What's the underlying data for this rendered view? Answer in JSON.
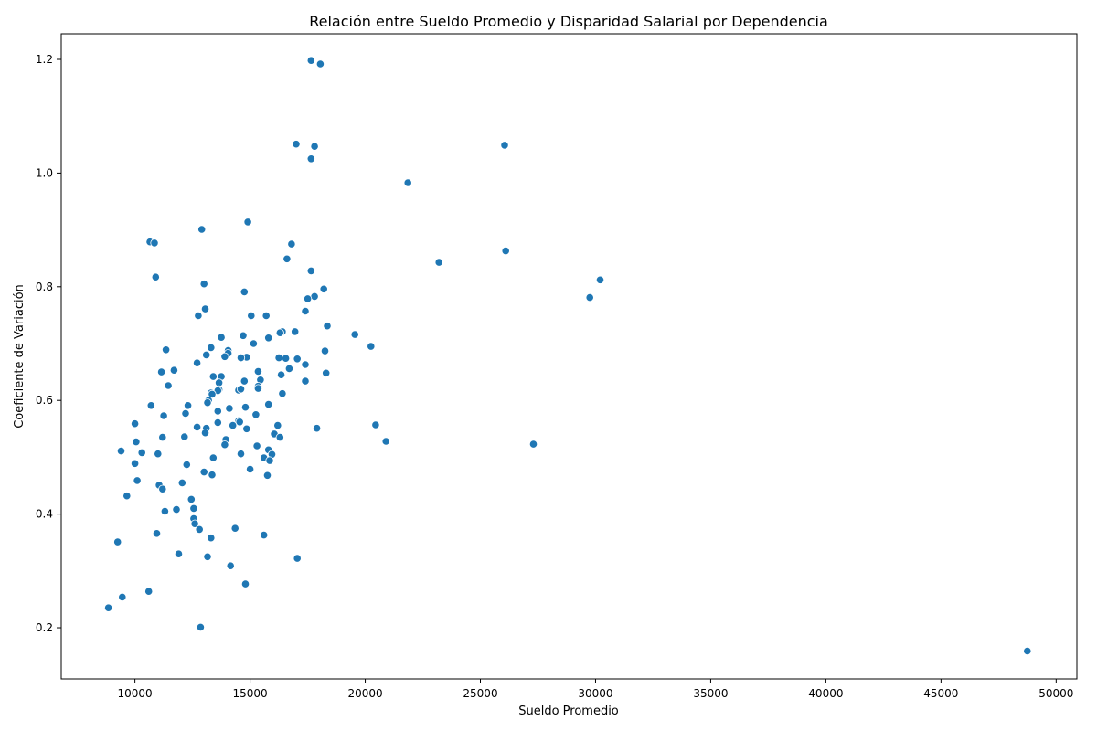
{
  "chart_data": {
    "type": "scatter",
    "title": "Relación entre Sueldo Promedio y Disparidad Salarial por Dependencia",
    "xlabel": "Sueldo Promedio",
    "ylabel": "Coeficiente de Variación",
    "xlim": [
      6800,
      50900
    ],
    "ylim": [
      0.11,
      1.245
    ],
    "xticks": [
      10000,
      15000,
      20000,
      25000,
      30000,
      35000,
      40000,
      45000,
      50000
    ],
    "xtick_labels": [
      "10000",
      "15000",
      "20000",
      "25000",
      "30000",
      "35000",
      "40000",
      "45000",
      "50000"
    ],
    "yticks": [
      0.2,
      0.4,
      0.6,
      0.8,
      1.0,
      1.2
    ],
    "ytick_labels": [
      "0.2",
      "0.4",
      "0.6",
      "0.8",
      "1.0",
      "1.2"
    ],
    "grid": false,
    "color": "#1f77b4",
    "points": [
      [
        17650,
        1.198
      ],
      [
        18050,
        1.192
      ],
      [
        17000,
        1.051
      ],
      [
        17800,
        1.047
      ],
      [
        26050,
        1.049
      ],
      [
        17650,
        1.025
      ],
      [
        21850,
        0.983
      ],
      [
        12900,
        0.901
      ],
      [
        14900,
        0.914
      ],
      [
        10650,
        0.879
      ],
      [
        10850,
        0.877
      ],
      [
        16800,
        0.875
      ],
      [
        26100,
        0.863
      ],
      [
        16600,
        0.849
      ],
      [
        23200,
        0.843
      ],
      [
        17650,
        0.828
      ],
      [
        10900,
        0.817
      ],
      [
        30200,
        0.812
      ],
      [
        13000,
        0.805
      ],
      [
        18200,
        0.796
      ],
      [
        14750,
        0.791
      ],
      [
        17800,
        0.783
      ],
      [
        29750,
        0.781
      ],
      [
        17500,
        0.779
      ],
      [
        13050,
        0.761
      ],
      [
        17400,
        0.757
      ],
      [
        12750,
        0.749
      ],
      [
        15050,
        0.749
      ],
      [
        15700,
        0.749
      ],
      [
        18350,
        0.731
      ],
      [
        16400,
        0.721
      ],
      [
        16950,
        0.721
      ],
      [
        16300,
        0.719
      ],
      [
        19550,
        0.716
      ],
      [
        14700,
        0.714
      ],
      [
        13750,
        0.711
      ],
      [
        15800,
        0.71
      ],
      [
        15150,
        0.7
      ],
      [
        20250,
        0.695
      ],
      [
        13300,
        0.693
      ],
      [
        11350,
        0.689
      ],
      [
        14050,
        0.688
      ],
      [
        18250,
        0.687
      ],
      [
        14050,
        0.683
      ],
      [
        13100,
        0.68
      ],
      [
        13900,
        0.677
      ],
      [
        14850,
        0.676
      ],
      [
        14600,
        0.675
      ],
      [
        16250,
        0.675
      ],
      [
        16550,
        0.674
      ],
      [
        17050,
        0.673
      ],
      [
        12700,
        0.666
      ],
      [
        17400,
        0.663
      ],
      [
        16700,
        0.656
      ],
      [
        11700,
        0.653
      ],
      [
        15350,
        0.651
      ],
      [
        11150,
        0.65
      ],
      [
        18300,
        0.648
      ],
      [
        16350,
        0.645
      ],
      [
        13400,
        0.642
      ],
      [
        13750,
        0.642
      ],
      [
        15450,
        0.636
      ],
      [
        14750,
        0.634
      ],
      [
        17400,
        0.634
      ],
      [
        13650,
        0.631
      ],
      [
        11450,
        0.626
      ],
      [
        15350,
        0.625
      ],
      [
        15350,
        0.621
      ],
      [
        14500,
        0.618
      ],
      [
        14600,
        0.62
      ],
      [
        13650,
        0.619
      ],
      [
        13600,
        0.617
      ],
      [
        13300,
        0.613
      ],
      [
        13350,
        0.611
      ],
      [
        16400,
        0.612
      ],
      [
        13200,
        0.6
      ],
      [
        13150,
        0.596
      ],
      [
        10700,
        0.591
      ],
      [
        12300,
        0.591
      ],
      [
        15800,
        0.593
      ],
      [
        14100,
        0.586
      ],
      [
        14800,
        0.588
      ],
      [
        13600,
        0.581
      ],
      [
        12200,
        0.577
      ],
      [
        15250,
        0.575
      ],
      [
        11250,
        0.573
      ],
      [
        10000,
        0.559
      ],
      [
        13600,
        0.561
      ],
      [
        14500,
        0.564
      ],
      [
        14550,
        0.562
      ],
      [
        14250,
        0.556
      ],
      [
        16200,
        0.556
      ],
      [
        20450,
        0.557
      ],
      [
        12700,
        0.553
      ],
      [
        13100,
        0.551
      ],
      [
        14850,
        0.55
      ],
      [
        17900,
        0.551
      ],
      [
        13050,
        0.543
      ],
      [
        16050,
        0.541
      ],
      [
        12150,
        0.536
      ],
      [
        11200,
        0.535
      ],
      [
        16300,
        0.535
      ],
      [
        13950,
        0.531
      ],
      [
        10050,
        0.527
      ],
      [
        20900,
        0.528
      ],
      [
        27300,
        0.523
      ],
      [
        13900,
        0.522
      ],
      [
        15300,
        0.52
      ],
      [
        15800,
        0.513
      ],
      [
        9400,
        0.511
      ],
      [
        10300,
        0.508
      ],
      [
        11000,
        0.506
      ],
      [
        14600,
        0.506
      ],
      [
        15950,
        0.505
      ],
      [
        13400,
        0.499
      ],
      [
        15600,
        0.499
      ],
      [
        15850,
        0.494
      ],
      [
        10000,
        0.489
      ],
      [
        12250,
        0.487
      ],
      [
        15000,
        0.479
      ],
      [
        13000,
        0.474
      ],
      [
        13350,
        0.469
      ],
      [
        15750,
        0.468
      ],
      [
        10100,
        0.459
      ],
      [
        12050,
        0.455
      ],
      [
        11050,
        0.451
      ],
      [
        11200,
        0.444
      ],
      [
        9650,
        0.432
      ],
      [
        12450,
        0.426
      ],
      [
        12550,
        0.41
      ],
      [
        11800,
        0.408
      ],
      [
        11300,
        0.405
      ],
      [
        12550,
        0.392
      ],
      [
        12600,
        0.383
      ],
      [
        14350,
        0.375
      ],
      [
        12800,
        0.373
      ],
      [
        10950,
        0.366
      ],
      [
        15600,
        0.363
      ],
      [
        13300,
        0.358
      ],
      [
        9250,
        0.351
      ],
      [
        11900,
        0.33
      ],
      [
        13150,
        0.325
      ],
      [
        17050,
        0.322
      ],
      [
        14150,
        0.309
      ],
      [
        14800,
        0.277
      ],
      [
        10600,
        0.264
      ],
      [
        9450,
        0.254
      ],
      [
        8850,
        0.235
      ],
      [
        12850,
        0.201
      ],
      [
        48750,
        0.159
      ]
    ]
  }
}
